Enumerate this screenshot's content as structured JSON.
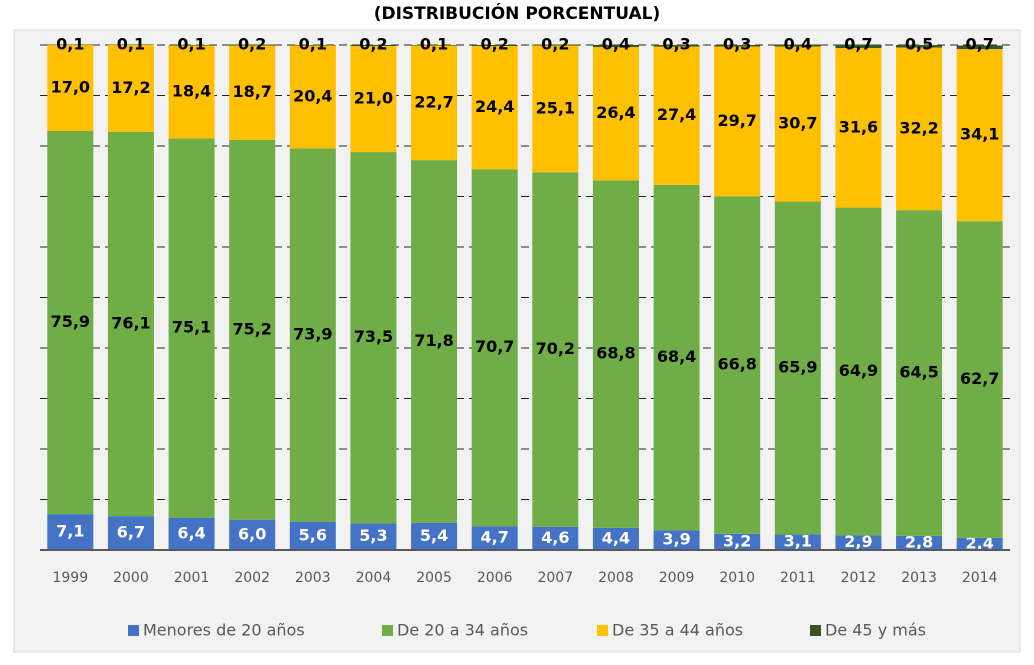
{
  "chart_data": {
    "type": "stacked_bar",
    "title": "(DISTRIBUCIÓN PORCENTUAL)",
    "categories": [
      "1999",
      "2000",
      "2001",
      "2002",
      "2003",
      "2004",
      "2005",
      "2006",
      "2007",
      "2008",
      "2009",
      "2010",
      "2011",
      "2012",
      "2013",
      "2014"
    ],
    "series": [
      {
        "name": "Menores de 20 años",
        "color": "#4472c4",
        "values": [
          7.1,
          6.7,
          6.4,
          6.0,
          5.6,
          5.3,
          5.4,
          4.7,
          4.6,
          4.4,
          3.9,
          3.2,
          3.1,
          2.9,
          2.8,
          2.4
        ],
        "value_labels": [
          "7,1",
          "6,7",
          "6,4",
          "6,0",
          "5,6",
          "5,3",
          "5,4",
          "4,7",
          "4,6",
          "4,4",
          "3,9",
          "3,2",
          "3,1",
          "2,9",
          "2,8",
          "2,4"
        ]
      },
      {
        "name": "De 20 a 34 años",
        "color": "#70ad47",
        "values": [
          75.9,
          76.1,
          75.1,
          75.2,
          73.9,
          73.5,
          71.8,
          70.7,
          70.2,
          68.8,
          68.4,
          66.8,
          65.9,
          64.9,
          64.5,
          62.7
        ],
        "value_labels": [
          "75,9",
          "76,1",
          "75,1",
          "75,2",
          "73,9",
          "73,5",
          "71,8",
          "70,7",
          "70,2",
          "68,8",
          "68,4",
          "66,8",
          "65,9",
          "64,9",
          "64,5",
          "62,7"
        ]
      },
      {
        "name": "De 35 a 44 años",
        "color": "#ffc000",
        "values": [
          17.0,
          17.2,
          18.4,
          18.7,
          20.4,
          21.0,
          22.7,
          24.4,
          25.1,
          26.4,
          27.4,
          29.7,
          30.7,
          31.6,
          32.2,
          34.1
        ],
        "value_labels": [
          "17,0",
          "17,2",
          "18,4",
          "18,7",
          "20,4",
          "21,0",
          "22,7",
          "24,4",
          "25,1",
          "26,4",
          "27,4",
          "29,7",
          "30,7",
          "31,6",
          "32,2",
          "34,1"
        ]
      },
      {
        "name": "De 45 y más",
        "color": "#375623",
        "values": [
          0.1,
          0.1,
          0.1,
          0.2,
          0.1,
          0.2,
          0.1,
          0.2,
          0.2,
          0.4,
          0.3,
          0.3,
          0.4,
          0.7,
          0.5,
          0.7
        ],
        "value_labels": [
          "0,1",
          "0,1",
          "0,1",
          "0,2",
          "0,1",
          "0,2",
          "0,1",
          "0,2",
          "0,2",
          "0,4",
          "0,3",
          "0,3",
          "0,4",
          "0,7",
          "0,5",
          "0,7"
        ]
      }
    ],
    "ylim": [
      0,
      100
    ],
    "yticks": [
      0,
      10,
      20,
      30,
      40,
      50,
      60,
      70,
      80,
      90,
      100
    ],
    "grid": true,
    "legend": "bottom"
  }
}
